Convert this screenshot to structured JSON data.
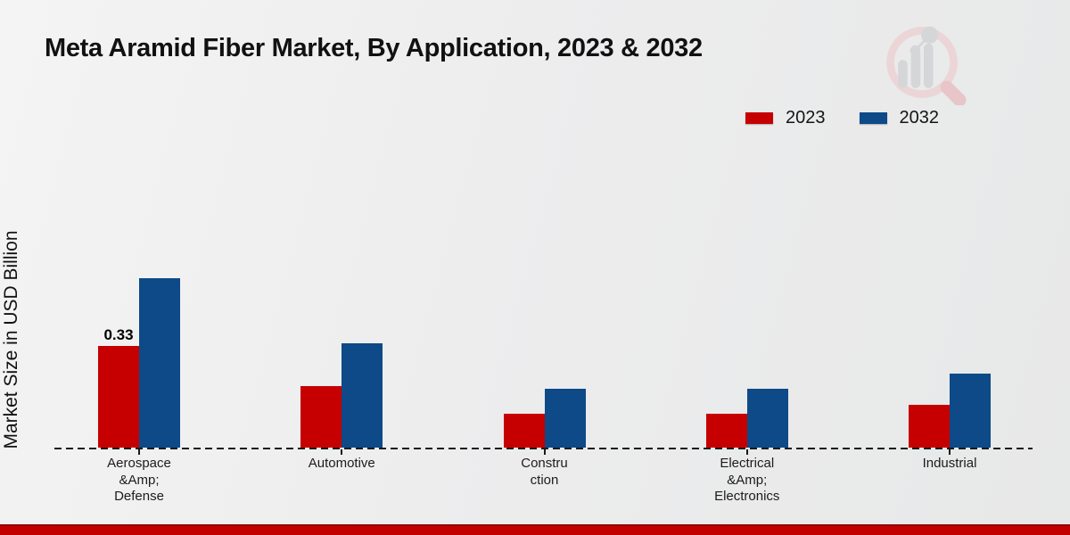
{
  "header": {
    "title": "Meta Aramid Fiber Market, By Application, 2023 & 2032"
  },
  "axes": {
    "y_label": "Market Size in USD Billion"
  },
  "legend": {
    "items": [
      {
        "label": "2023",
        "color": "#c60000"
      },
      {
        "label": "2032",
        "color": "#0d4a87"
      }
    ]
  },
  "chart_data": {
    "type": "bar",
    "title": "Meta Aramid Fiber Market, By Application, 2023 & 2032",
    "categories": [
      "Aerospace &Amp; Defense",
      "Automotive",
      "Construction",
      "Electrical &Amp; Electronics",
      "Industrial"
    ],
    "category_label_lines": [
      [
        "Aerospace",
        "&Amp;",
        "Defense"
      ],
      [
        "Automotive"
      ],
      [
        "Constru",
        "ction"
      ],
      [
        "Electrical",
        "&Amp;",
        "Electronics"
      ],
      [
        "Industrial"
      ]
    ],
    "series": [
      {
        "name": "2023",
        "color": "#c60000",
        "values": [
          0.33,
          0.2,
          0.11,
          0.11,
          0.14
        ],
        "value_labels": [
          "0.33",
          "",
          "",
          "",
          ""
        ]
      },
      {
        "name": "2032",
        "color": "#0d4a87",
        "values": [
          0.55,
          0.34,
          0.19,
          0.19,
          0.24
        ],
        "value_labels": [
          "",
          "",
          "",
          "",
          ""
        ]
      }
    ],
    "xlabel": "",
    "ylabel": "Market Size in USD Billion",
    "ylim": [
      0,
      0.6
    ],
    "grid": false,
    "legend_position": "top-right",
    "baseline_style": "dashed"
  },
  "footer": {
    "bar_color": "#c20000"
  },
  "logo": {
    "name": "market-research-future-logo"
  }
}
